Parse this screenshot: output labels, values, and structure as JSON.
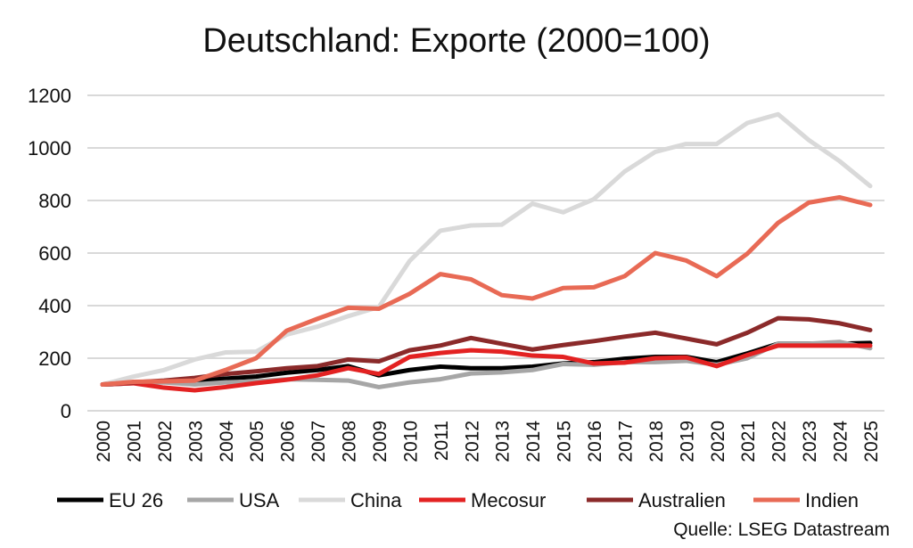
{
  "chart_data": {
    "type": "line",
    "title": "Deutschland: Exporte (2000=100)",
    "source": "Quelle: LSEG Datastream",
    "xlabel": "",
    "ylabel": "",
    "ylim": [
      0,
      1200
    ],
    "yticks": [
      0,
      200,
      400,
      600,
      800,
      1000,
      1200
    ],
    "grid": true,
    "legend_placement": "bottom",
    "categories": [
      "2000",
      "2001",
      "2002",
      "2003",
      "2004",
      "2005",
      "2006",
      "2007",
      "2008",
      "2009",
      "2010",
      "2011",
      "2012",
      "2013",
      "2014",
      "2015",
      "2016",
      "2017",
      "2018",
      "2019",
      "2020",
      "2021",
      "2022",
      "2023",
      "2024",
      "2025"
    ],
    "series": [
      {
        "name": "EU 26",
        "color": "#000000",
        "values": [
          100,
          105,
          110,
          115,
          122,
          130,
          145,
          155,
          170,
          135,
          155,
          168,
          162,
          162,
          168,
          180,
          185,
          198,
          205,
          205,
          185,
          218,
          255,
          255,
          255,
          258
        ]
      },
      {
        "name": "USA",
        "color": "#a6a6a6",
        "values": [
          100,
          105,
          108,
          100,
          108,
          112,
          120,
          118,
          115,
          90,
          108,
          120,
          142,
          146,
          155,
          178,
          175,
          185,
          185,
          190,
          175,
          200,
          255,
          255,
          262,
          238
        ]
      },
      {
        "name": "China",
        "color": "#d9d9d9",
        "values": [
          100,
          130,
          155,
          195,
          222,
          225,
          290,
          320,
          360,
          395,
          570,
          685,
          705,
          708,
          788,
          755,
          805,
          910,
          985,
          1015,
          1015,
          1095,
          1128,
          1030,
          950,
          855
        ]
      },
      {
        "name": "Mecosur",
        "color": "#e32222",
        "values": [
          100,
          105,
          88,
          78,
          90,
          105,
          118,
          135,
          162,
          140,
          205,
          220,
          230,
          225,
          210,
          205,
          180,
          183,
          200,
          203,
          170,
          212,
          248,
          248,
          248,
          248
        ]
      },
      {
        "name": "Australien",
        "color": "#8b2a2a",
        "values": [
          100,
          108,
          115,
          125,
          140,
          150,
          162,
          170,
          195,
          188,
          230,
          248,
          277,
          255,
          233,
          250,
          265,
          282,
          297,
          275,
          253,
          297,
          352,
          348,
          333,
          307
        ]
      },
      {
        "name": "Indien",
        "color": "#e86a55",
        "values": [
          100,
          110,
          112,
          115,
          155,
          200,
          305,
          350,
          392,
          388,
          445,
          520,
          500,
          440,
          427,
          467,
          470,
          512,
          600,
          572,
          512,
          598,
          715,
          792,
          812,
          783
        ]
      }
    ]
  }
}
